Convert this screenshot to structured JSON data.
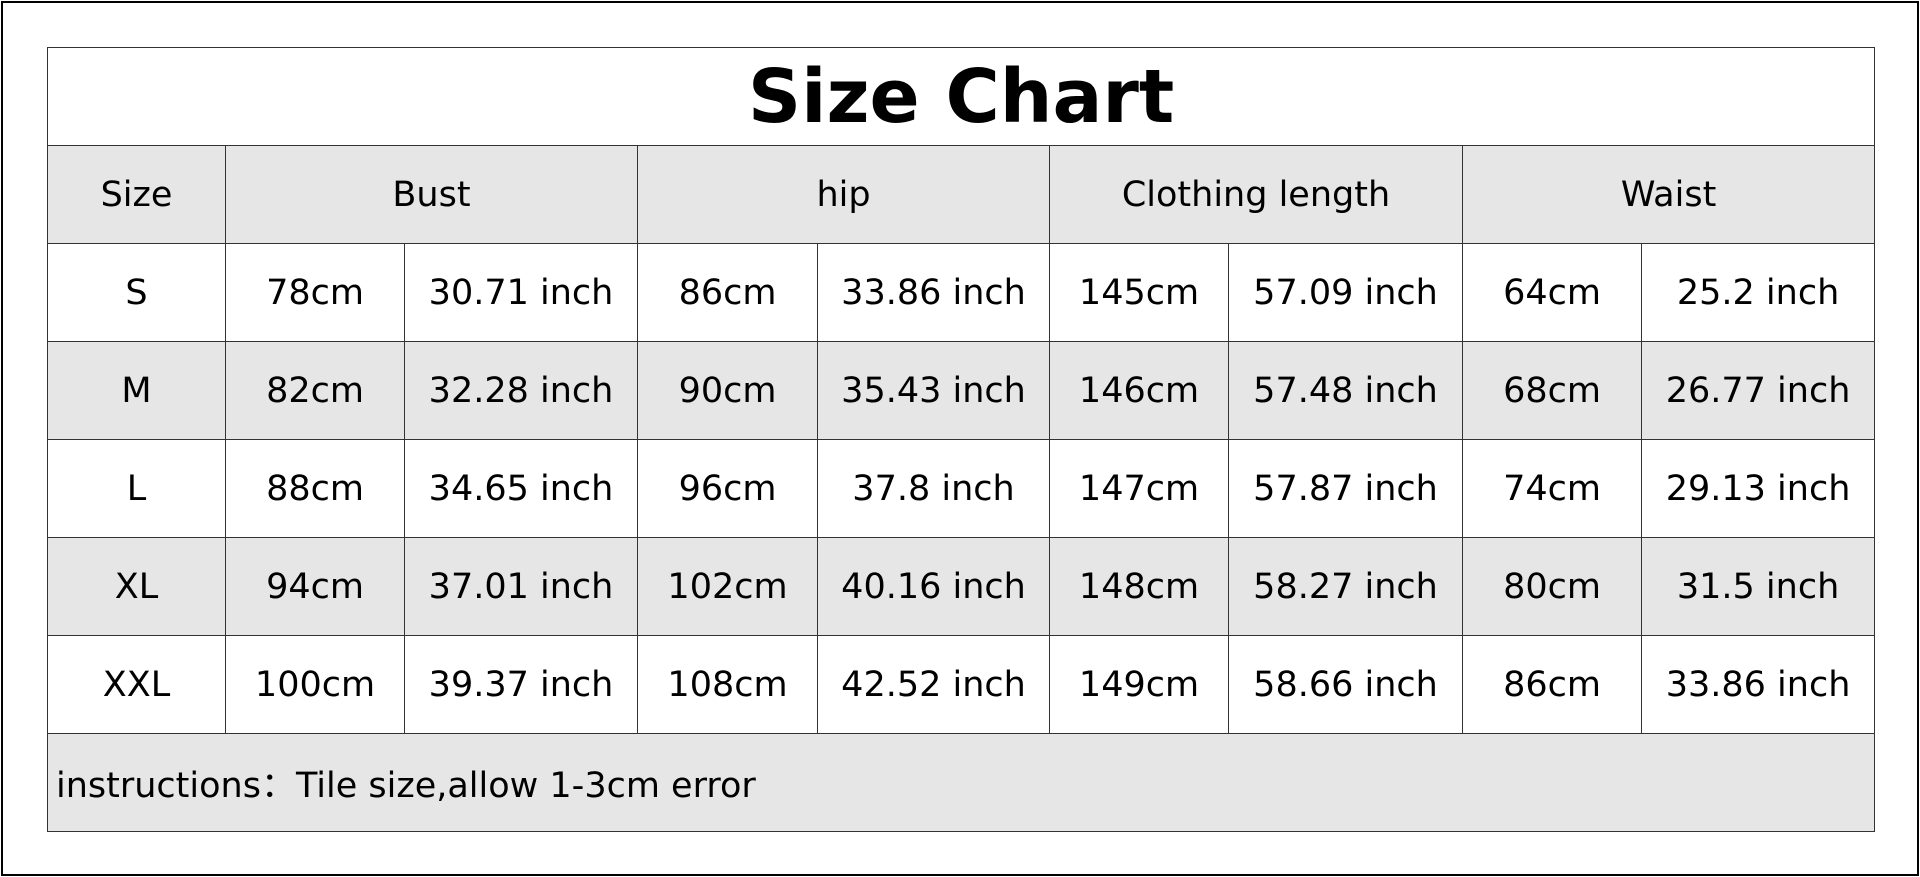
{
  "title": "Size Chart",
  "headers": [
    "Size",
    "Bust",
    "hip",
    "Clothing length",
    "Waist"
  ],
  "rows": [
    [
      "S",
      "78cm",
      "30.71 inch",
      "86cm",
      "33.86 inch",
      "145cm",
      "57.09 inch",
      "64cm",
      "25.2 inch"
    ],
    [
      "M",
      "82cm",
      "32.28 inch",
      "90cm",
      "35.43 inch",
      "146cm",
      "57.48 inch",
      "68cm",
      "26.77 inch"
    ],
    [
      "L",
      "88cm",
      "34.65 inch",
      "96cm",
      "37.8 inch",
      "147cm",
      "57.87 inch",
      "74cm",
      "29.13 inch"
    ],
    [
      "XL",
      "94cm",
      "37.01 inch",
      "102cm",
      "40.16 inch",
      "148cm",
      "58.27 inch",
      "80cm",
      "31.5 inch"
    ],
    [
      "XXL",
      "100cm",
      "39.37 inch",
      "108cm",
      "42.52 inch",
      "149cm",
      "58.66 inch",
      "86cm",
      "33.86 inch"
    ]
  ],
  "footer": "instructions：Tile size,allow 1-3cm error",
  "colors": {
    "shaded_row": "#e6e6e6",
    "border": "#333333"
  }
}
